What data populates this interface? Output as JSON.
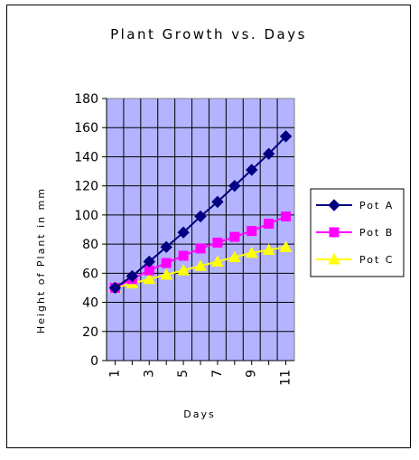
{
  "chart_data": {
    "type": "line",
    "title": "Plant Growth vs. Days",
    "xlabel": "Days",
    "ylabel": "Height of Plant in mm",
    "x_tick_labels": [
      "1",
      "3",
      "5",
      "7",
      "9",
      "11"
    ],
    "y_tick_labels": [
      "0",
      "20",
      "40",
      "60",
      "80",
      "100",
      "120",
      "140",
      "160",
      "180"
    ],
    "x": [
      1,
      2,
      3,
      4,
      5,
      6,
      7,
      8,
      9,
      10,
      11
    ],
    "xlim": [
      0.5,
      11.5
    ],
    "ylim": [
      0,
      180
    ],
    "grid": true,
    "legend_position": "right",
    "plot_background": "#b3b3ff",
    "series": [
      {
        "name": "Pot A",
        "color": "#000080",
        "marker": "diamond",
        "values": [
          50,
          58,
          68,
          78,
          88,
          99,
          109,
          120,
          131,
          142,
          154
        ]
      },
      {
        "name": "Pot B",
        "color": "#ff00ff",
        "marker": "square",
        "values": [
          50,
          56,
          62,
          67,
          72,
          77,
          81,
          85,
          89,
          94,
          99
        ]
      },
      {
        "name": "Pot C",
        "color": "#ffff00",
        "marker": "triangle",
        "values": [
          50,
          53,
          56,
          59,
          62,
          65,
          68,
          71,
          74,
          76,
          78
        ]
      }
    ]
  }
}
